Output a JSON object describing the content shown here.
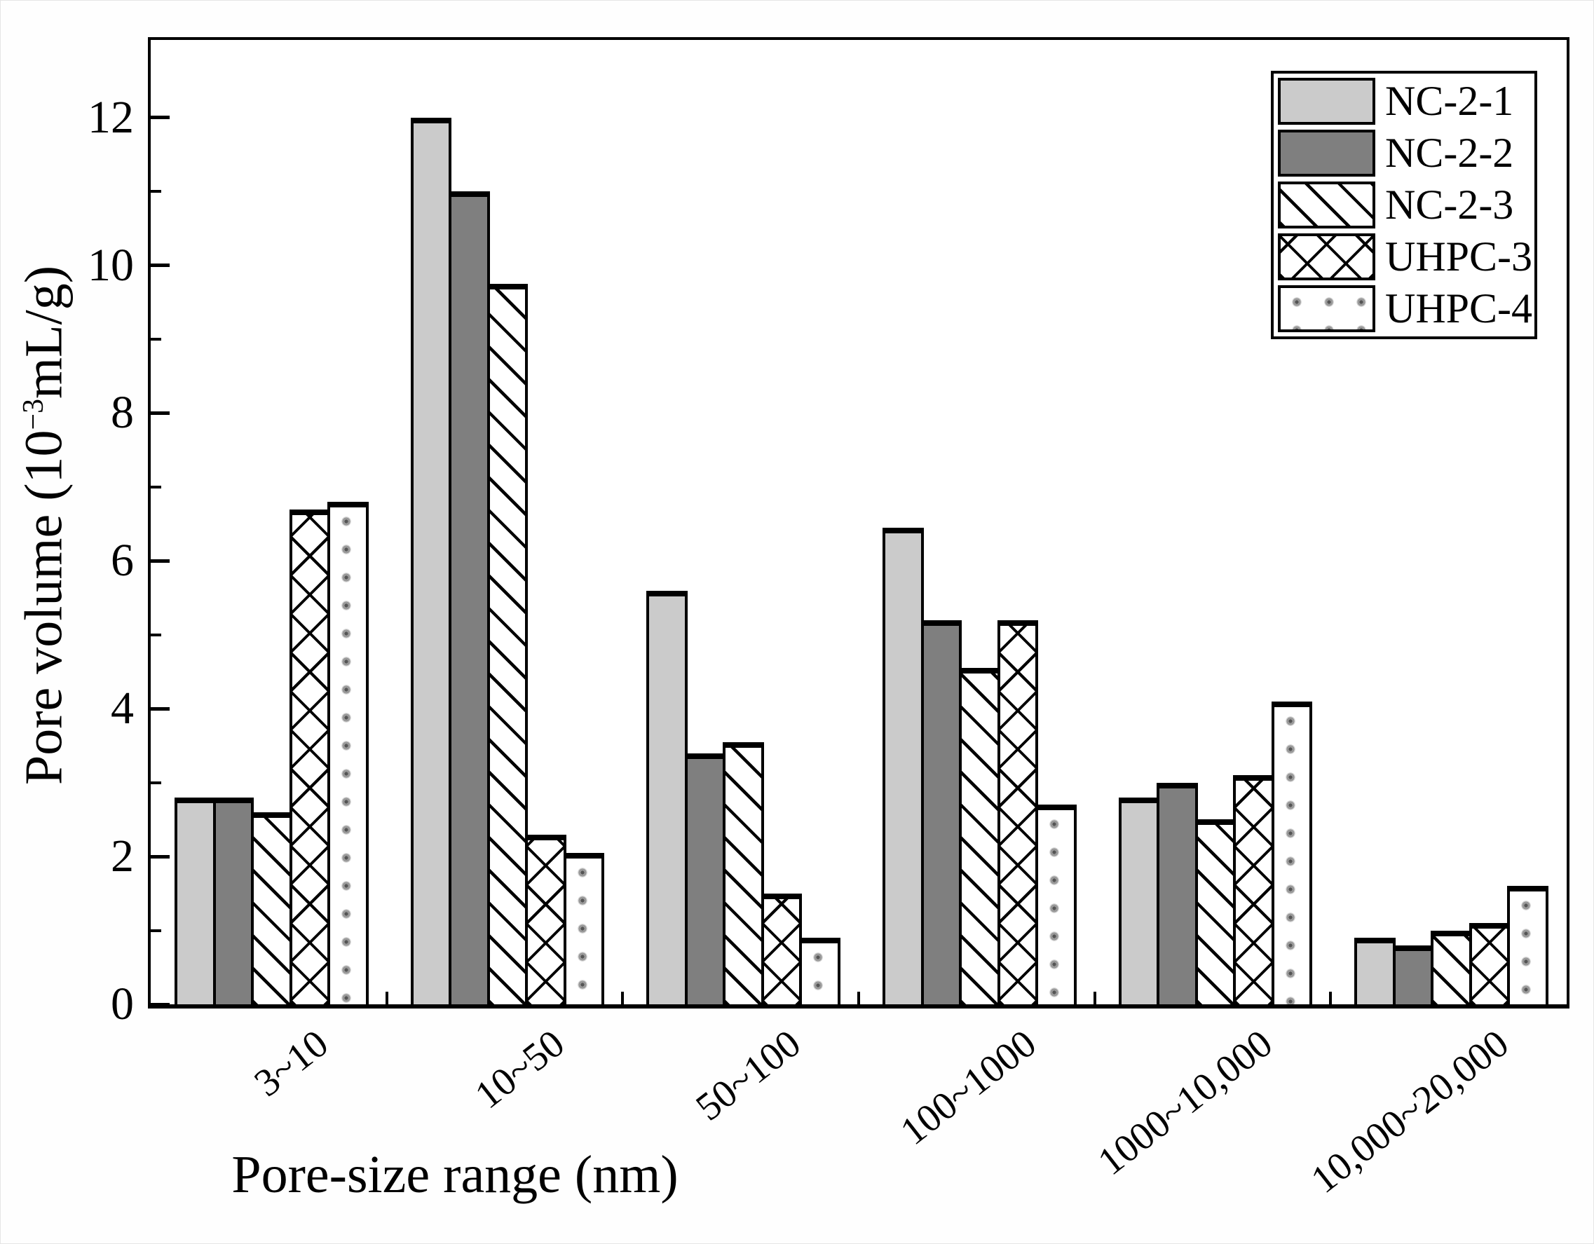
{
  "chart_data": {
    "type": "bar",
    "title": "",
    "xlabel": "Pore-size range (nm)",
    "ylabel": "Pore volume (10^-3 mL/g)",
    "ylabel_parts": {
      "pre": "Pore volume (10",
      "sup": "−3",
      "post": "mL/g)"
    },
    "categories": [
      "3~10",
      "10~50",
      "50~100",
      "100~1000",
      "1000~10,000",
      "10,000~20,000"
    ],
    "series": [
      {
        "name": "NC-2-1",
        "pattern": "solid-light",
        "color": "#cbcbcb",
        "values": [
          2.8,
          12.0,
          5.6,
          6.45,
          2.8,
          0.9
        ]
      },
      {
        "name": "NC-2-2",
        "pattern": "solid-dark",
        "color": "#7f7f7f",
        "values": [
          2.8,
          11.0,
          3.4,
          5.2,
          3.0,
          0.8
        ]
      },
      {
        "name": "NC-2-3",
        "pattern": "diagonal",
        "color": "#ffffff",
        "values": [
          2.6,
          9.75,
          3.55,
          4.55,
          2.5,
          1.0
        ]
      },
      {
        "name": "UHPC-3",
        "pattern": "crosshatch",
        "color": "#ffffff",
        "values": [
          6.7,
          2.3,
          1.5,
          5.2,
          3.1,
          1.1
        ]
      },
      {
        "name": "UHPC-4",
        "pattern": "dots",
        "color": "#ffffff",
        "values": [
          6.8,
          2.05,
          0.9,
          2.7,
          4.1,
          1.6
        ]
      }
    ],
    "ylim": [
      0,
      13.05
    ],
    "yticks": [
      0,
      2,
      4,
      6,
      8,
      10,
      12
    ],
    "minor_yticks": [
      1,
      3,
      5,
      7,
      9,
      11
    ],
    "legend_position": "top-right",
    "grid": false,
    "axis_color": "#000000",
    "background_color": "#ffffff"
  }
}
